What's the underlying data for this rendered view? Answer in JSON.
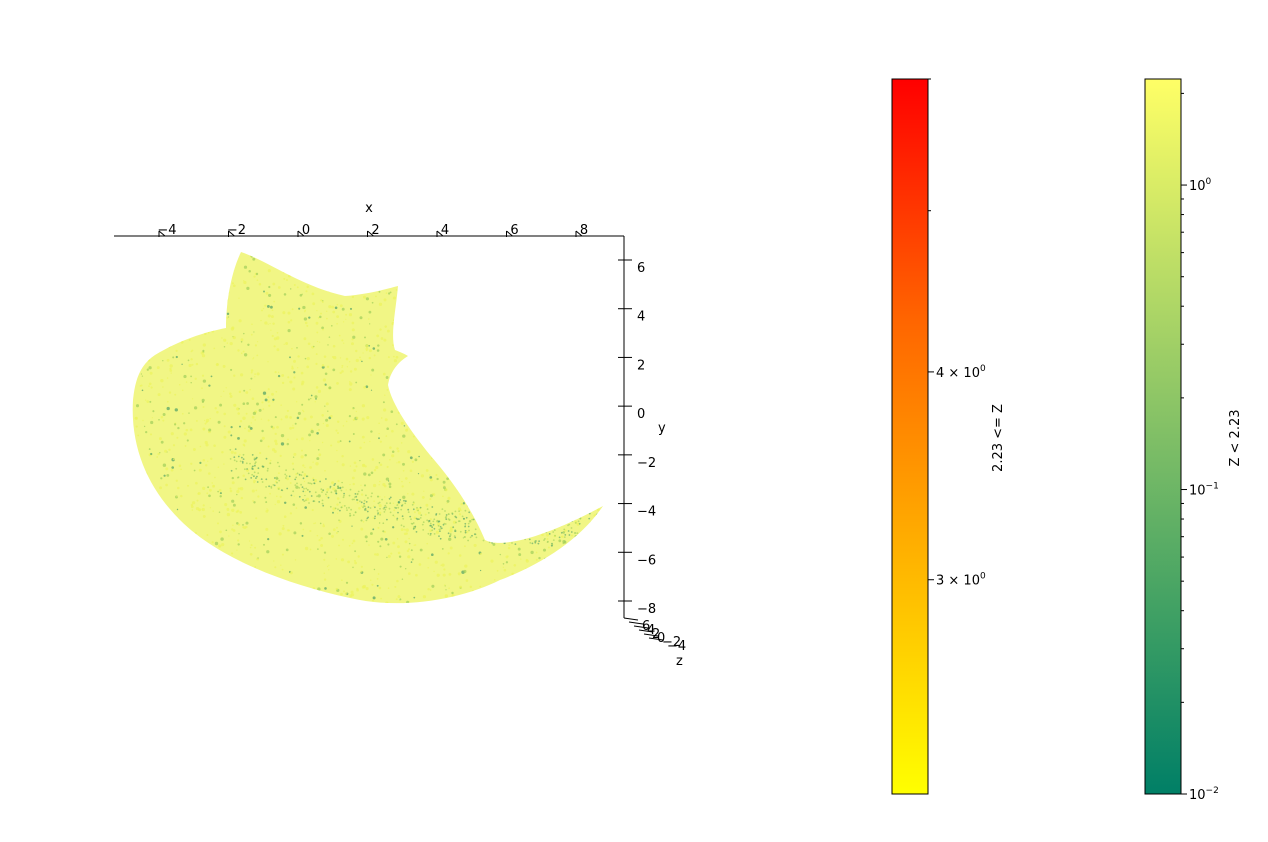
{
  "chart_data": [
    {
      "type": "scatter",
      "projection": "3d",
      "view": "top-down",
      "xlabel": "x",
      "ylabel": "y",
      "zlabel": "z",
      "x_ticks": [
        "−4",
        "−2",
        "0",
        "2",
        "4",
        "6",
        "8"
      ],
      "x_tick_values": [
        -4,
        -2,
        0,
        2,
        4,
        6,
        8
      ],
      "y_ticks": [
        "6",
        "4",
        "2",
        "0",
        "−2",
        "−4",
        "−6",
        "−8"
      ],
      "y_tick_values": [
        6,
        4,
        2,
        0,
        -2,
        -4,
        -6,
        -8
      ],
      "z_ticks": [
        "6",
        "4",
        "2",
        "0",
        "−2",
        "−4"
      ],
      "xlim": [
        -5.3,
        9.2
      ],
      "ylim": [
        -8.6,
        7.3
      ],
      "point_color_range": [
        "#ecf35c",
        "#9fcf5a",
        "#4fa065"
      ],
      "grid": false
    },
    {
      "type": "colorbar",
      "scale": "log",
      "label": "2.23 <= Z",
      "range": [
        2.23,
        6.0
      ],
      "colors": [
        "#ffff00",
        "#ffb300",
        "#ff6600",
        "#ff0000"
      ],
      "tick_labels": [
        "3 × 10^0",
        "4 × 10^0"
      ],
      "tick_values": [
        3,
        4
      ],
      "minor_tick_values": [
        5,
        6
      ]
    },
    {
      "type": "colorbar",
      "scale": "log",
      "label": "Z < 2.23",
      "range": [
        0.01,
        2.23
      ],
      "colors": [
        "#007f66",
        "#3fa064",
        "#80bf66",
        "#bfdf66",
        "#ffff66"
      ],
      "tick_labels": [
        "10^−2",
        "10^−1",
        "10^0"
      ],
      "tick_values": [
        0.01,
        0.1,
        1
      ]
    }
  ]
}
